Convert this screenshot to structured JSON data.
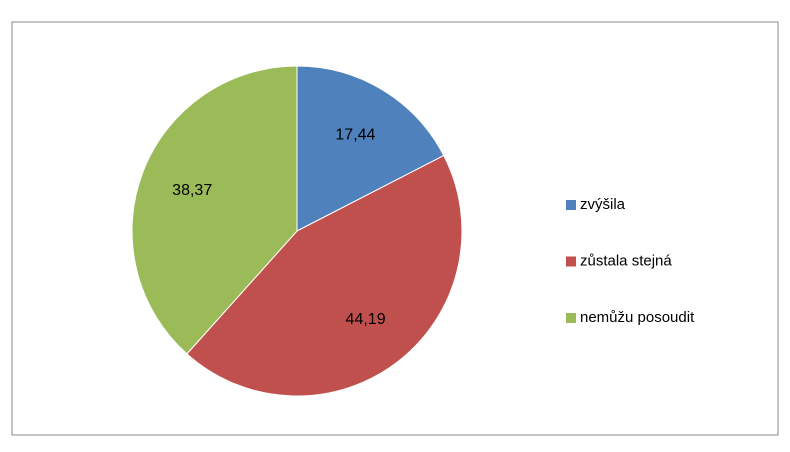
{
  "chart_data": {
    "type": "pie",
    "categories": [
      "zvýšila",
      "zůstala stejná",
      "nemůžu posoudit"
    ],
    "values": [
      17.44,
      44.19,
      38.37
    ],
    "value_labels": [
      "17,44",
      "44,19",
      "38,37"
    ],
    "colors": [
      "#4f81bd",
      "#c0504d",
      "#9bbb59"
    ],
    "legend": "right"
  }
}
